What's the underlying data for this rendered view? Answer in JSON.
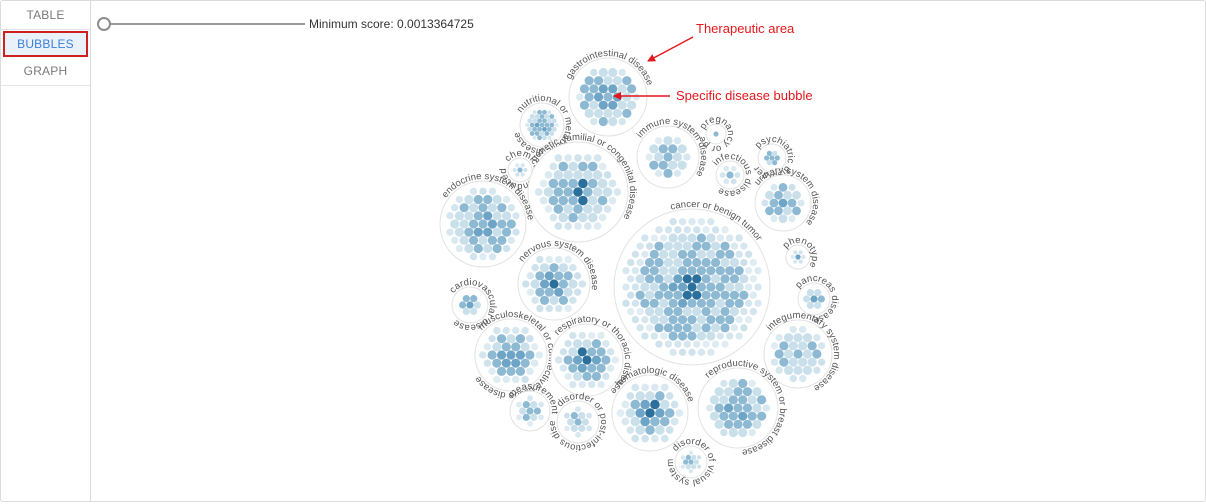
{
  "sidebar": {
    "tabs": [
      {
        "label": "TABLE",
        "active": false
      },
      {
        "label": "BUBBLES",
        "active": true
      },
      {
        "label": "GRAPH",
        "active": false
      }
    ]
  },
  "filter": {
    "label": "Minimum score: 0.0013364725",
    "slider_level": 0
  },
  "annotations": {
    "therapeutic_area": "Therapeutic area",
    "specific_disease": "Specific disease bubble"
  },
  "colors": {
    "annotation": "#e5161b",
    "bubble_light": "#c9dfea",
    "bubble_mid": "#8db9d3",
    "bubble_dark": "#2b6f9c",
    "area_border": "#e2e2e2",
    "tab_active": "#3d7fd6",
    "tab_highlight_border": "#cf2020"
  },
  "therapeutic_areas": [
    {
      "id": "gastro",
      "name": "gastrointestinal disease",
      "dark": 0
    },
    {
      "id": "nutritional",
      "name": "nutritional or metabolic disease",
      "dark": 0
    },
    {
      "id": "immune",
      "name": "immune system disease",
      "dark": 0
    },
    {
      "id": "pregnancy",
      "name": "pregnancy or perinatal disease",
      "dark": 0
    },
    {
      "id": "infectious",
      "name": "infectious disease",
      "dark": 0
    },
    {
      "id": "psychiatric",
      "name": "psychiatric disorder",
      "dark": 0
    },
    {
      "id": "chemically",
      "name": "chemically induced disease or biological process",
      "dark": 0
    },
    {
      "id": "genetic",
      "name": "genetic, familial or congenital disease",
      "dark": 3
    },
    {
      "id": "endocrine",
      "name": "endocrine system disease",
      "dark": 0
    },
    {
      "id": "urinary",
      "name": "urinary system disease",
      "dark": 0
    },
    {
      "id": "cancer",
      "name": "cancer or benign tumor",
      "dark": 5
    },
    {
      "id": "phenotype",
      "name": "phenotype",
      "dark": 0
    },
    {
      "id": "nervous",
      "name": "nervous system disease",
      "dark": 1
    },
    {
      "id": "cardiovascular",
      "name": "cardiovascular disease",
      "dark": 0
    },
    {
      "id": "pancreas",
      "name": "pancreas disease",
      "dark": 0
    },
    {
      "id": "musculoskeletal",
      "name": "musculoskeletal or connective tissue disease",
      "dark": 0
    },
    {
      "id": "respiratory",
      "name": "respiratory or thoracic disease",
      "dark": 2
    },
    {
      "id": "integumentary",
      "name": "integumentary system disease",
      "dark": 0
    },
    {
      "id": "measurement",
      "name": "measurement",
      "dark": 0
    },
    {
      "id": "postinfectious",
      "name": "disorder or post-infectious disease",
      "dark": 0
    },
    {
      "id": "hematologic",
      "name": "hematologic disease",
      "dark": 2
    },
    {
      "id": "reproductive",
      "name": "reproductive system or breast disease",
      "dark": 0
    },
    {
      "id": "visual",
      "name": "disorder of visual system",
      "dark": 0
    }
  ]
}
